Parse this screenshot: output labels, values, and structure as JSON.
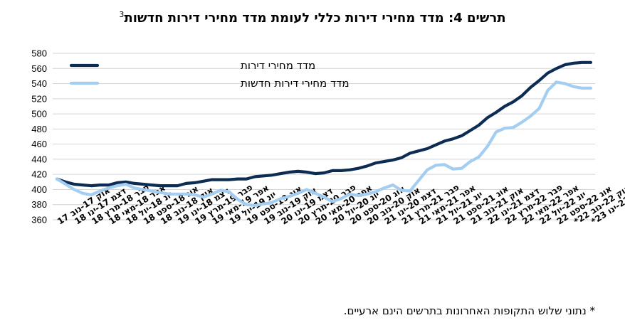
{
  "title": {
    "text": "תרשים 4: מדד מחירי דירות כללי לעומת מדד מחירי דירות חדשות",
    "superscript": "3"
  },
  "footnote": "* נתוני שלוש התקופות האחרונות בתרשים הינם ארעיים.",
  "chart_data": {
    "type": "line",
    "ylim": [
      360,
      580
    ],
    "yticks": [
      360,
      380,
      400,
      420,
      440,
      460,
      480,
      500,
      520,
      540,
      560,
      580
    ],
    "grid": "horizontal",
    "legend_position": "top-left",
    "x": [
      "אוק 17-נוב 17",
      "נוב 17-דצמ 17",
      "דצמ 17-ינו 18",
      "ינו 18-פבר 18",
      "פבר 18-מרץ 18",
      "מרץ 18-אפר 18",
      "אפר 18-מאי 18",
      "מאי 18-יונ 18",
      "יונ 18-יול 18",
      "יול 18-אוג 18",
      "אוג 18-ספט 18",
      "ספט 18-אוק 18",
      "אוק 18-נוב 18",
      "נוב 18-דצמ 18",
      "דצמ 18-ינו 19",
      "ינו 19-פבר 19",
      "פבר 19-מרץ 19",
      "מרץ 19-אפר 19",
      "אפר 19-מאי 19",
      "מאי 19-יונ 19",
      "יונ 19-יול 19",
      "יול 19-אוג 19",
      "אוג 19-ספט 19",
      "ספט 19-אוק 19",
      "אוק 19-נוב 19",
      "נוב 19-דצמ 19",
      "דצמ 19-ינו 20",
      "ינו 20-פבר 20",
      "פבר 20-מרץ 20",
      "מרץ 20-אפר 20",
      "אפר 20-מאי 20",
      "מאי 20-יונ 20",
      "יונ 20-יול 20",
      "יול 20-אוג 20",
      "אוג 20-ספט 20",
      "ספט 20-אוק 20",
      "אוק 20-נוב 20",
      "נוב 20-דצמ 20",
      "דצמ 20-ינו 21",
      "ינו 21-פבר 21",
      "פבר 21-מרץ 21",
      "מרץ 21-אפר 21",
      "אפר 21-מאי 21",
      "מאי 21-יונ 21",
      "יונ 21-יול 21",
      "יול 21-אוג 21",
      "אוג 21-ספט 21",
      "ספט 21-אוק 21",
      "אוק 21-נוב 21",
      "נוב 21-דצמ 21",
      "דצמ 21-ינו 22",
      "ינו 22-פבר 22",
      "פבר 22-מרץ 22",
      "מרץ 22-אפר 22",
      "אפר 22-מאי 22",
      "מאי 22-יונ 22",
      "יונ 22-יול 22",
      "יול 22-אוג 22",
      "אוג 22-ספט 22",
      "ספט 22-אוק 22*",
      "אוק 22-נוב 22*",
      "נוב 22-דצמ 22*",
      "דצמ 22-ינו 23*"
    ],
    "xtick_labels": [
      {
        "i": 0,
        "text": "אוק 17-נוב 17"
      },
      {
        "i": 2,
        "text": "דצמ 17-ינו 18"
      },
      {
        "i": 4,
        "text": "פבר 18-מרץ 18"
      },
      {
        "i": 6,
        "text": "אפר 18-מאי 18"
      },
      {
        "i": 8,
        "text": "יונ 18-יול 18"
      },
      {
        "i": 10,
        "text": "אוג 18-ספט 18"
      },
      {
        "i": 12,
        "text": "אוק 18-נוב 18"
      },
      {
        "i": 14,
        "text": "דצמ 18-ינו 19"
      },
      {
        "i": 16,
        "text": "פבר 19-מרץ 19"
      },
      {
        "i": 18,
        "text": "אפר 19-מאי 19"
      },
      {
        "i": 20,
        "text": "יונ 19-יול 19"
      },
      {
        "i": 22,
        "text": "אוג 19-ספט 19"
      },
      {
        "i": 24,
        "text": "אוק 19-נוב 19"
      },
      {
        "i": 26,
        "text": "דצמ 19-ינו 20"
      },
      {
        "i": 28,
        "text": "פבר 20-מרץ 20"
      },
      {
        "i": 30,
        "text": "אפר 20-מאי 20"
      },
      {
        "i": 32,
        "text": "יונ 20-יול 20"
      },
      {
        "i": 34,
        "text": "אוג 20-ספט 20"
      },
      {
        "i": 36,
        "text": "אוק 20-נוב 20"
      },
      {
        "i": 38,
        "text": "דצמ 20-ינו 21"
      },
      {
        "i": 40,
        "text": "פבר 21-מרץ 21"
      },
      {
        "i": 42,
        "text": "אפר 21-מאי 21"
      },
      {
        "i": 44,
        "text": "יונ 21-יול 21"
      },
      {
        "i": 46,
        "text": "אוג 21-ספט 21"
      },
      {
        "i": 48,
        "text": "אוק 21-נוב 21"
      },
      {
        "i": 50,
        "text": "דצמ 21-ינו 22"
      },
      {
        "i": 52,
        "text": "פבר 22-מרץ 22"
      },
      {
        "i": 54,
        "text": "אפר 22-מאי 22"
      },
      {
        "i": 56,
        "text": "יונ 22-יול 22"
      },
      {
        "i": 58,
        "text": "אוג 22-ספט 22"
      },
      {
        "i": 60,
        "text": "אוק 22-נוב 22*"
      },
      {
        "i": 62,
        "text": "דצמ 22-ינו 23*"
      }
    ],
    "series": [
      {
        "name": "מדד מחירי דירות",
        "color": "#0d2c54",
        "values": [
          414,
          410,
          407,
          406,
          405,
          406,
          406,
          409,
          410,
          408,
          407,
          406,
          405,
          405,
          405,
          408,
          409,
          411,
          413,
          413,
          413,
          414,
          414,
          417,
          418,
          419,
          421,
          423,
          424,
          423,
          421,
          422,
          425,
          425,
          426,
          428,
          431,
          435,
          437,
          439,
          442,
          448,
          451,
          454,
          459,
          464,
          467,
          471,
          478,
          485,
          495,
          502,
          510,
          516,
          524,
          535,
          544,
          554,
          560,
          565,
          567,
          568,
          568
        ]
      },
      {
        "name": "מדד מחירי דירות חדשות",
        "color": "#a4cdf2",
        "values": [
          414,
          407,
          400,
          395,
          393,
          398,
          402,
          405,
          407,
          402,
          400,
          398,
          396,
          394,
          394,
          394,
          393,
          390,
          394,
          399,
          397,
          387,
          380,
          379,
          381,
          383,
          388,
          391,
          395,
          400,
          395,
          390,
          384,
          388,
          394,
          392,
          394,
          397,
          402,
          406,
          399,
          398,
          412,
          426,
          432,
          433,
          427,
          428,
          437,
          443,
          457,
          476,
          481,
          482,
          489,
          497,
          507,
          531,
          542,
          540,
          536,
          534,
          534
        ]
      }
    ]
  }
}
